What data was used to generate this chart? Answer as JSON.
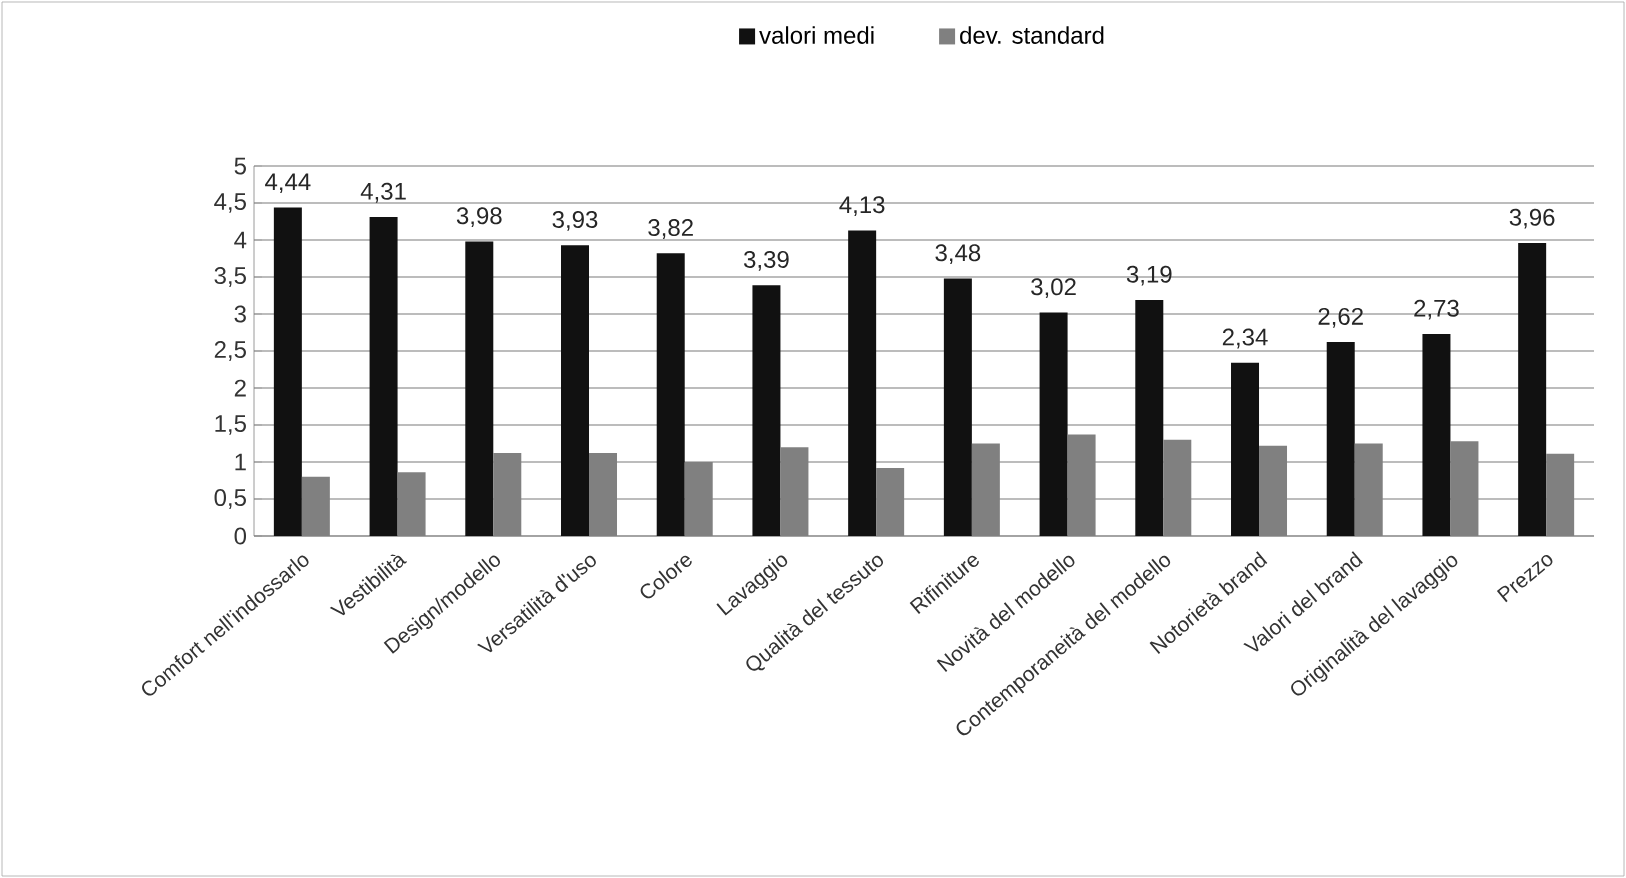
{
  "chart_data": {
    "type": "bar",
    "categories": [
      "Comfort nell'indossarlo",
      "Vestibilità",
      "Design/modello",
      "Versatilità  d'uso",
      "Colore",
      "Lavaggio",
      "Qualità del tessuto",
      "Rifiniture",
      "Novità del modello",
      "Contemporaneità del modello",
      "Notorietà brand",
      "Valori del brand",
      "Originalità del lavaggio",
      "Prezzo"
    ],
    "series": [
      {
        "name": "valori medi",
        "color": "#111111",
        "values": [
          4.44,
          4.31,
          3.98,
          3.93,
          3.82,
          3.39,
          4.13,
          3.48,
          3.02,
          3.19,
          2.34,
          2.62,
          2.73,
          3.96
        ],
        "value_labels": [
          "4,44",
          "4,31",
          "3,98",
          "3,93",
          "3,82",
          "3,39",
          "4,13",
          "3,48",
          "3,02",
          "3,19",
          "2,34",
          "2,62",
          "2,73",
          "3,96"
        ]
      },
      {
        "name": "dev. standard",
        "color": "#808080",
        "values": [
          0.8,
          0.86,
          1.12,
          1.12,
          1.0,
          1.2,
          0.92,
          1.25,
          1.37,
          1.3,
          1.22,
          1.25,
          1.28,
          1.11
        ]
      }
    ],
    "ylim": [
      0,
      5
    ],
    "yticks": [
      0,
      {
        "value": 0.5,
        "label": "0,5"
      },
      1,
      {
        "value": 1.5,
        "label": "1,5"
      },
      2,
      {
        "value": 2.5,
        "label": "2,5"
      },
      3,
      {
        "value": 3.5,
        "label": "3,5"
      },
      4,
      {
        "value": 4.5,
        "label": "4,5"
      },
      5
    ],
    "grid": "y",
    "legend": "top"
  }
}
